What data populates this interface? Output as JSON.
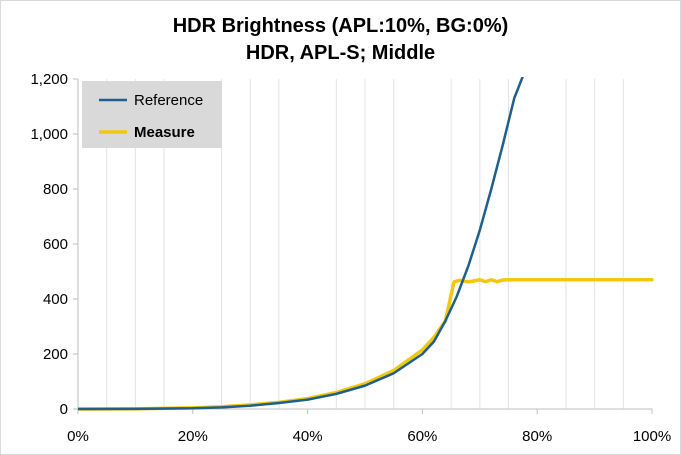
{
  "chart_data": {
    "type": "line",
    "title": "HDR Brightness (APL:10%, BG:0%)",
    "subtitle": "HDR, APL-S; Middle",
    "xlim": [
      0,
      100
    ],
    "ylim": [
      0,
      1200
    ],
    "x_ticks": [
      "0%",
      "20%",
      "40%",
      "60%",
      "80%",
      "100%"
    ],
    "y_ticks": [
      "0",
      "200",
      "400",
      "600",
      "800",
      "1,000",
      "1,200"
    ],
    "grid": "vertical-minor",
    "legend_placement": "top-left",
    "series": [
      {
        "name": "Reference",
        "color": "#1f5f8b",
        "x": [
          0,
          10,
          20,
          25,
          30,
          35,
          40,
          45,
          50,
          55,
          60,
          62,
          64,
          66,
          68,
          70,
          72,
          74,
          76,
          77.5
        ],
        "y": [
          0,
          0.5,
          2.5,
          6,
          12,
          22,
          34,
          55,
          85,
          130,
          200,
          245,
          320,
          410,
          520,
          650,
          800,
          960,
          1130,
          1210
        ]
      },
      {
        "name": "Measure",
        "color": "#f2c80f",
        "x": [
          0,
          10,
          17,
          20,
          25,
          30,
          35,
          40,
          45,
          50,
          55,
          60,
          62,
          64,
          65.5,
          66.5,
          68,
          69,
          70,
          71,
          72,
          73,
          74,
          75,
          80,
          90,
          100
        ],
        "y": [
          0,
          0.5,
          3,
          4,
          8,
          15,
          24,
          38,
          60,
          92,
          140,
          215,
          260,
          320,
          462,
          468,
          462,
          466,
          470,
          463,
          470,
          463,
          469,
          470,
          470,
          470,
          470
        ]
      }
    ]
  }
}
